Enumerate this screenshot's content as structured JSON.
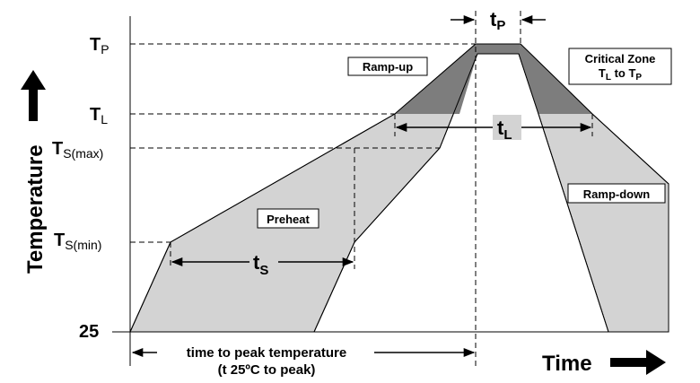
{
  "y_axis": {
    "title": "Temperature",
    "labels": {
      "tp": {
        "main": "T",
        "sub": "P"
      },
      "tl": {
        "main": "T",
        "sub": "L"
      },
      "tsmax": {
        "main": "T",
        "sub": "S(max)"
      },
      "tsmin": {
        "main": "T",
        "sub": "S(min)"
      },
      "t25": {
        "main": "25",
        "sub": ""
      }
    }
  },
  "x_axis": {
    "title": "Time"
  },
  "regions": {
    "ramp_up": "Ramp-up",
    "ramp_down": "Ramp-down",
    "preheat": "Preheat",
    "critical_zone": {
      "line1": "Critical Zone",
      "line2_a": "T",
      "line2_sub_a": "L",
      "line2_b": " to T",
      "line2_sub_b": "P"
    }
  },
  "dimensions": {
    "tp": {
      "main": "t",
      "sub": "P"
    },
    "tl": {
      "main": "t",
      "sub": "L"
    },
    "ts": {
      "main": "t",
      "sub": "S"
    }
  },
  "bottom_note": {
    "line1": "time to peak temperature",
    "line2": "(t 25ºC to peak)"
  },
  "colors": {
    "light_fill": "#d3d3d3",
    "dark_fill": "#7d7d7d",
    "line": "#000000"
  }
}
